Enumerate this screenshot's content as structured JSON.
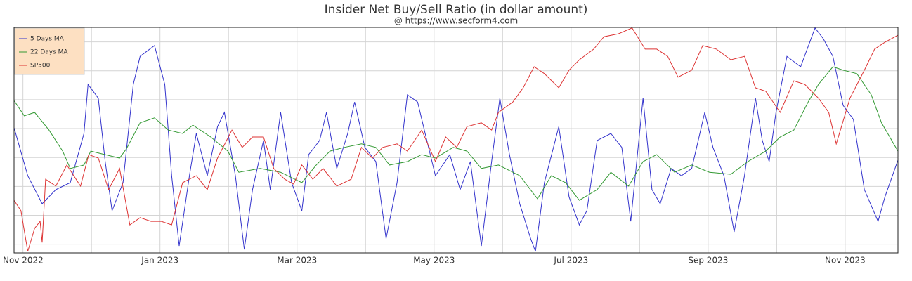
{
  "chart_data": {
    "type": "line",
    "title": "Insider Net Buy/Sell Ratio (in dollar amount)",
    "subtitle": "@ https://www.secform4.com",
    "xlim": [
      -0.13,
      12.77
    ],
    "xticks": [
      {
        "value": 0,
        "label": "Nov 2022"
      },
      {
        "value": 2,
        "label": "Jan 2023"
      },
      {
        "value": 4,
        "label": "Mar 2023"
      },
      {
        "value": 6,
        "label": "May 2023"
      },
      {
        "value": 8,
        "label": "Jul 2023"
      },
      {
        "value": 10,
        "label": "Sep 2023"
      },
      {
        "value": 12,
        "label": "Nov 2023"
      }
    ],
    "x_minor_ticks": [
      1,
      3,
      5,
      7,
      9,
      11
    ],
    "ylim": [
      -0.3,
      7.5
    ],
    "yticks": [
      0,
      1,
      2,
      3,
      4,
      5,
      6,
      7
    ],
    "grid": true,
    "legend": "top-left",
    "series": [
      {
        "name": "5 Days MA",
        "color": "#3333cc",
        "x": [
          -0.13,
          0.07,
          0.28,
          0.48,
          0.69,
          0.89,
          0.95,
          1.1,
          1.2,
          1.3,
          1.46,
          1.61,
          1.71,
          1.92,
          2.07,
          2.17,
          2.28,
          2.43,
          2.53,
          2.69,
          2.84,
          2.94,
          3.1,
          3.23,
          3.35,
          3.51,
          3.61,
          3.76,
          3.92,
          4.07,
          4.17,
          4.33,
          4.43,
          4.58,
          4.74,
          4.84,
          4.99,
          5.15,
          5.3,
          5.46,
          5.61,
          5.76,
          5.87,
          6.02,
          6.23,
          6.38,
          6.53,
          6.69,
          6.84,
          6.96,
          7.1,
          7.25,
          7.41,
          7.48,
          7.61,
          7.82,
          7.97,
          8.12,
          8.23,
          8.38,
          8.58,
          8.74,
          8.87,
          9.05,
          9.18,
          9.3,
          9.46,
          9.61,
          9.76,
          9.95,
          10.07,
          10.23,
          10.38,
          10.53,
          10.69,
          10.79,
          10.89,
          10.99,
          11.15,
          11.35,
          11.56,
          11.68,
          11.82,
          11.97,
          12.12,
          12.28,
          12.48,
          12.58,
          12.77
        ],
        "values": [
          4.03,
          2.37,
          1.4,
          1.89,
          2.13,
          3.83,
          5.53,
          5.05,
          2.86,
          1.16,
          2.13,
          5.53,
          6.5,
          6.87,
          5.53,
          2.37,
          -0.06,
          2.37,
          3.83,
          2.37,
          4.07,
          4.56,
          2.37,
          -0.18,
          1.89,
          3.59,
          1.89,
          4.56,
          2.13,
          1.16,
          3.1,
          3.59,
          4.56,
          2.62,
          3.83,
          4.92,
          3.35,
          2.86,
          0.19,
          2.13,
          5.17,
          4.92,
          3.83,
          2.37,
          3.1,
          1.89,
          2.86,
          -0.06,
          2.86,
          5.05,
          3.1,
          1.4,
          0.19,
          -0.25,
          2.13,
          4.07,
          1.64,
          0.67,
          1.16,
          3.59,
          3.83,
          3.35,
          0.79,
          5.05,
          1.89,
          1.4,
          2.62,
          2.37,
          2.62,
          4.56,
          3.35,
          2.37,
          0.43,
          2.37,
          5.05,
          3.59,
          2.86,
          4.56,
          6.5,
          6.14,
          7.48,
          7.11,
          6.5,
          4.8,
          4.32,
          1.89,
          0.79,
          1.64,
          2.91
        ]
      },
      {
        "name": "22 Days MA",
        "color": "#339933",
        "x": [
          -0.13,
          0.02,
          0.17,
          0.38,
          0.58,
          0.69,
          0.89,
          0.99,
          1.2,
          1.41,
          1.51,
          1.71,
          1.92,
          2.12,
          2.33,
          2.48,
          2.74,
          2.99,
          3.15,
          3.46,
          3.76,
          4.07,
          4.28,
          4.48,
          4.69,
          4.94,
          5.15,
          5.35,
          5.61,
          5.82,
          6.02,
          6.28,
          6.48,
          6.69,
          6.94,
          7.25,
          7.51,
          7.71,
          7.92,
          8.12,
          8.38,
          8.58,
          8.84,
          9.05,
          9.25,
          9.51,
          9.76,
          10.02,
          10.33,
          10.58,
          10.84,
          11.05,
          11.25,
          11.46,
          11.61,
          11.82,
          11.97,
          12.17,
          12.38,
          12.53,
          12.77
        ],
        "values": [
          4.97,
          4.44,
          4.56,
          3.95,
          3.22,
          2.62,
          2.74,
          3.22,
          3.1,
          2.98,
          3.3,
          4.2,
          4.37,
          3.95,
          3.83,
          4.12,
          3.71,
          3.22,
          2.49,
          2.62,
          2.49,
          2.13,
          2.74,
          3.22,
          3.35,
          3.47,
          3.35,
          2.74,
          2.86,
          3.1,
          2.98,
          3.35,
          3.22,
          2.62,
          2.74,
          2.37,
          1.57,
          2.37,
          2.13,
          1.52,
          1.89,
          2.49,
          2.01,
          2.86,
          3.1,
          2.49,
          2.74,
          2.49,
          2.42,
          2.86,
          3.22,
          3.71,
          3.95,
          4.92,
          5.53,
          6.14,
          6.02,
          5.9,
          5.17,
          4.2,
          3.22
        ]
      },
      {
        "name": "SP500",
        "color": "#dd3333",
        "x": [
          -0.13,
          -0.03,
          0.07,
          0.17,
          0.25,
          0.28,
          0.33,
          0.48,
          0.64,
          0.84,
          0.96,
          1.1,
          1.25,
          1.41,
          1.56,
          1.71,
          1.87,
          2.02,
          2.17,
          2.33,
          2.53,
          2.69,
          2.84,
          3.05,
          3.2,
          3.35,
          3.51,
          3.66,
          3.82,
          3.95,
          4.07,
          4.23,
          4.38,
          4.58,
          4.79,
          4.94,
          5.1,
          5.25,
          5.46,
          5.61,
          5.82,
          6.02,
          6.17,
          6.33,
          6.48,
          6.69,
          6.84,
          6.94,
          7.15,
          7.3,
          7.46,
          7.61,
          7.82,
          7.97,
          8.12,
          8.33,
          8.48,
          8.69,
          8.89,
          9.08,
          9.25,
          9.41,
          9.56,
          9.76,
          9.92,
          10.12,
          10.33,
          10.53,
          10.69,
          10.84,
          11.05,
          11.25,
          11.41,
          11.61,
          11.76,
          11.87,
          12.07,
          12.28,
          12.43,
          12.58,
          12.77
        ],
        "values": [
          1.52,
          1.16,
          -0.25,
          0.55,
          0.79,
          0.06,
          2.25,
          2.01,
          2.74,
          2.01,
          3.1,
          2.98,
          1.89,
          2.62,
          0.67,
          0.92,
          0.79,
          0.79,
          0.67,
          2.13,
          2.37,
          1.89,
          2.98,
          3.95,
          3.35,
          3.71,
          3.71,
          2.62,
          2.25,
          2.08,
          2.74,
          2.25,
          2.62,
          2.01,
          2.25,
          3.35,
          2.98,
          3.35,
          3.47,
          3.22,
          3.95,
          2.86,
          3.71,
          3.35,
          4.07,
          4.2,
          3.95,
          4.56,
          4.92,
          5.41,
          6.14,
          5.9,
          5.41,
          6.02,
          6.38,
          6.75,
          7.18,
          7.28,
          7.48,
          6.75,
          6.75,
          6.5,
          5.78,
          6.02,
          6.87,
          6.75,
          6.38,
          6.5,
          5.41,
          5.29,
          4.56,
          5.65,
          5.53,
          5.05,
          4.56,
          3.47,
          5.05,
          6.02,
          6.75,
          6.99,
          7.23
        ]
      }
    ]
  }
}
